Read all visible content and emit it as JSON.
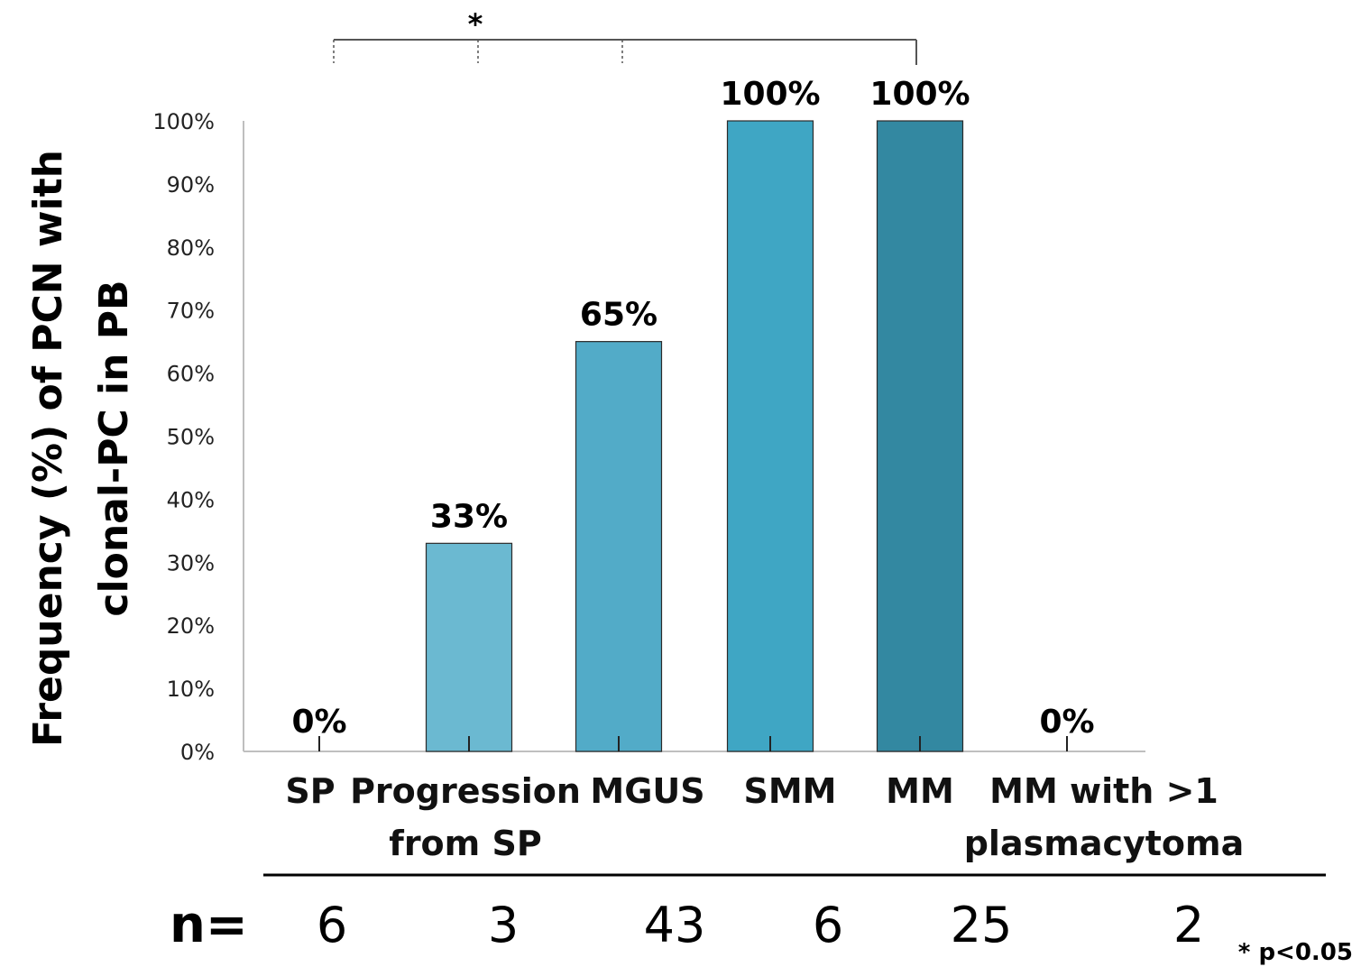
{
  "chart_data": {
    "type": "bar",
    "ylabel_lines": [
      "Frequency (%) of PCN with",
      "clonal-PC in PB"
    ],
    "categories": [
      [
        "SP"
      ],
      [
        "Progression",
        "from SP"
      ],
      [
        "MGUS"
      ],
      [
        "SMM"
      ],
      [
        "MM"
      ],
      [
        "MM with >1",
        "plasmacytoma"
      ]
    ],
    "values": [
      0,
      33,
      65,
      100,
      100,
      0
    ],
    "data_labels": [
      "0%",
      "33%",
      "65%",
      "100%",
      "100%",
      "0%"
    ],
    "bar_colors": [
      "#6bb9d1",
      "#6bb9d1",
      "#52abc8",
      "#3fa6c4",
      "#3388a1",
      "#6bb9d1"
    ],
    "ylim": [
      0,
      100
    ],
    "yticks": [
      "0%",
      "10%",
      "20%",
      "30%",
      "40%",
      "50%",
      "60%",
      "70%",
      "80%",
      "90%",
      "100%"
    ],
    "n_prefix": "n=",
    "n_values": [
      "6",
      "3",
      "43",
      "6",
      "25",
      "2"
    ],
    "significance": {
      "marker": "*",
      "footnote": "* p<0.05"
    },
    "axis_color": "#bfbfbf"
  }
}
